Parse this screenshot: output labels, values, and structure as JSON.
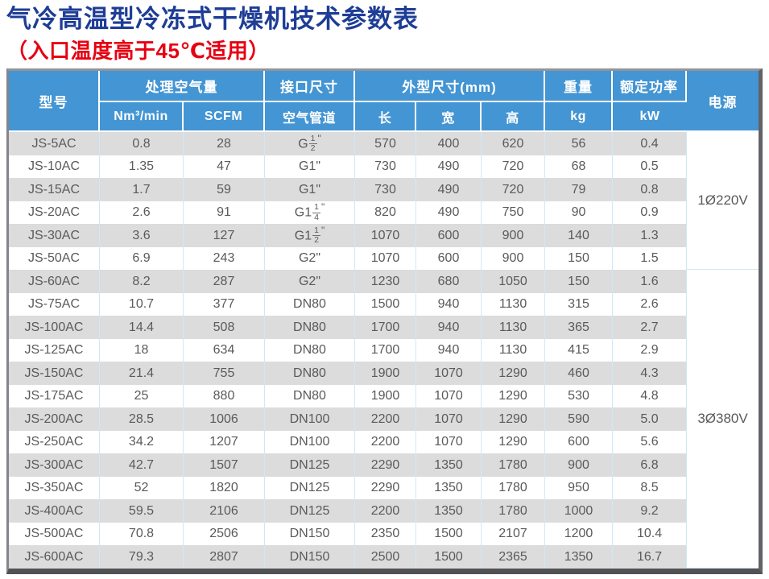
{
  "title": "气冷高温型冷冻式干燥机技术参数表",
  "subtitle": "（入口温度高于45℃适用）",
  "colors": {
    "title_blue": "#1e3d96",
    "subtitle_red": "#e60012",
    "header_blue": "#4495d3",
    "stripe_gray": "#dcdcdc",
    "body_text": "#5a5a5c",
    "divider_blue": "#cfe8f8"
  },
  "table": {
    "headers": {
      "model": "型号",
      "air_volume": "处理空气量",
      "air_volume_units": [
        "Nm³/min",
        "SCFM"
      ],
      "port_size": "接口尺寸",
      "air_pipe": "空气管道",
      "dimensions": "外型尺寸(mm)",
      "dim_length": "长",
      "dim_width": "宽",
      "dim_height": "高",
      "weight": "重量",
      "weight_unit": "kg",
      "power_rating": "额定功率",
      "power_unit": "kW",
      "power_supply": "电源"
    },
    "rows": [
      {
        "model": "JS-5AC",
        "nm3": "0.8",
        "scfm": "28",
        "pipe": "G1/2\"",
        "len": "570",
        "wid": "400",
        "hgt": "620",
        "kg": "56",
        "kw": "0.4"
      },
      {
        "model": "JS-10AC",
        "nm3": "1.35",
        "scfm": "47",
        "pipe": "G1\"",
        "len": "730",
        "wid": "490",
        "hgt": "720",
        "kg": "68",
        "kw": "0.5"
      },
      {
        "model": "JS-15AC",
        "nm3": "1.7",
        "scfm": "59",
        "pipe": "G1\"",
        "len": "730",
        "wid": "490",
        "hgt": "720",
        "kg": "79",
        "kw": "0.8"
      },
      {
        "model": "JS-20AC",
        "nm3": "2.6",
        "scfm": "91",
        "pipe": "G1 1/4\"",
        "len": "820",
        "wid": "490",
        "hgt": "750",
        "kg": "90",
        "kw": "0.9"
      },
      {
        "model": "JS-30AC",
        "nm3": "3.6",
        "scfm": "127",
        "pipe": "G1 1/2\"",
        "len": "1070",
        "wid": "600",
        "hgt": "900",
        "kg": "140",
        "kw": "1.3"
      },
      {
        "model": "JS-50AC",
        "nm3": "6.9",
        "scfm": "243",
        "pipe": "G2\"",
        "len": "1070",
        "wid": "600",
        "hgt": "900",
        "kg": "150",
        "kw": "1.5"
      },
      {
        "model": "JS-60AC",
        "nm3": "8.2",
        "scfm": "287",
        "pipe": "G2\"",
        "len": "1230",
        "wid": "680",
        "hgt": "1050",
        "kg": "150",
        "kw": "1.6"
      },
      {
        "model": "JS-75AC",
        "nm3": "10.7",
        "scfm": "377",
        "pipe": "DN80",
        "len": "1500",
        "wid": "940",
        "hgt": "1130",
        "kg": "315",
        "kw": "2.6"
      },
      {
        "model": "JS-100AC",
        "nm3": "14.4",
        "scfm": "508",
        "pipe": "DN80",
        "len": "1700",
        "wid": "940",
        "hgt": "1130",
        "kg": "365",
        "kw": "2.7"
      },
      {
        "model": "JS-125AC",
        "nm3": "18",
        "scfm": "634",
        "pipe": "DN80",
        "len": "1700",
        "wid": "940",
        "hgt": "1130",
        "kg": "415",
        "kw": "2.9"
      },
      {
        "model": "JS-150AC",
        "nm3": "21.4",
        "scfm": "755",
        "pipe": "DN80",
        "len": "1900",
        "wid": "1070",
        "hgt": "1290",
        "kg": "460",
        "kw": "4.3"
      },
      {
        "model": "JS-175AC",
        "nm3": "25",
        "scfm": "880",
        "pipe": "DN80",
        "len": "1900",
        "wid": "1070",
        "hgt": "1290",
        "kg": "530",
        "kw": "4.8"
      },
      {
        "model": "JS-200AC",
        "nm3": "28.5",
        "scfm": "1006",
        "pipe": "DN100",
        "len": "2200",
        "wid": "1070",
        "hgt": "1290",
        "kg": "590",
        "kw": "5.0"
      },
      {
        "model": "JS-250AC",
        "nm3": "34.2",
        "scfm": "1207",
        "pipe": "DN100",
        "len": "2200",
        "wid": "1070",
        "hgt": "1290",
        "kg": "600",
        "kw": "5.6"
      },
      {
        "model": "JS-300AC",
        "nm3": "42.7",
        "scfm": "1507",
        "pipe": "DN125",
        "len": "2290",
        "wid": "1350",
        "hgt": "1780",
        "kg": "900",
        "kw": "6.8"
      },
      {
        "model": "JS-350AC",
        "nm3": "52",
        "scfm": "1820",
        "pipe": "DN125",
        "len": "2290",
        "wid": "1350",
        "hgt": "1780",
        "kg": "950",
        "kw": "8.5"
      },
      {
        "model": "JS-400AC",
        "nm3": "59.5",
        "scfm": "2106",
        "pipe": "DN125",
        "len": "2200",
        "wid": "1350",
        "hgt": "1780",
        "kg": "1000",
        "kw": "9.2"
      },
      {
        "model": "JS-500AC",
        "nm3": "70.8",
        "scfm": "2506",
        "pipe": "DN150",
        "len": "2350",
        "wid": "1500",
        "hgt": "2107",
        "kg": "1200",
        "kw": "10.4"
      },
      {
        "model": "JS-600AC",
        "nm3": "79.3",
        "scfm": "2807",
        "pipe": "DN150",
        "len": "2500",
        "wid": "1500",
        "hgt": "2365",
        "kg": "1350",
        "kw": "16.7"
      }
    ],
    "power_groups": [
      {
        "label": "1Ø220V",
        "rows": 6
      },
      {
        "label": "3Ø380V",
        "rows": 13
      }
    ]
  }
}
